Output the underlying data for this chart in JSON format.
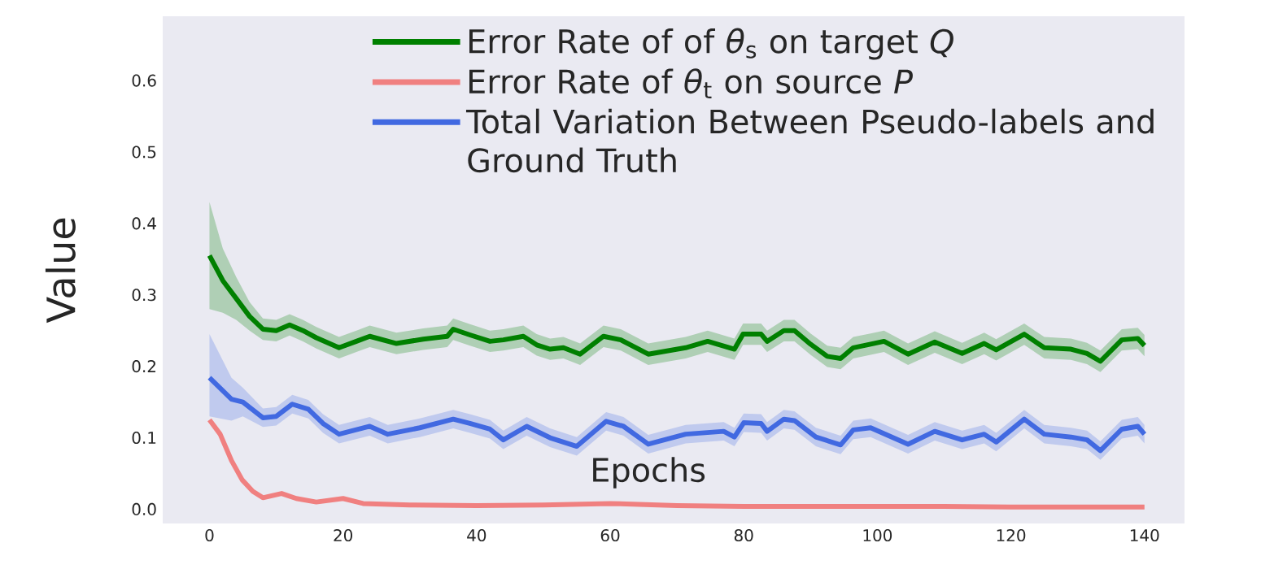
{
  "chart_data": {
    "type": "line",
    "xlabel": "Epochs",
    "ylabel": "Value",
    "xlim": [
      -7,
      146
    ],
    "ylim": [
      -0.02,
      0.69
    ],
    "xticks": [
      0,
      20,
      40,
      60,
      80,
      100,
      120,
      140
    ],
    "yticks": [
      {
        "value": 0,
        "label": "0.0"
      },
      0.1,
      0.2,
      0.3,
      0.4,
      0.5,
      0.6
    ],
    "grid": false,
    "legend": "top right",
    "series": [
      {
        "name": "Error Rate of of *θ*$_{s}$ on target *Q*",
        "color": "#008000",
        "x": [
          0,
          2,
          4,
          6,
          8,
          10,
          12,
          14,
          16,
          19.4,
          22,
          24,
          28,
          32,
          35.6,
          36.5,
          39,
          42,
          44,
          47,
          49,
          51,
          53,
          55.5,
          59,
          61.6,
          65.7,
          71.3,
          74.6,
          78.6,
          79.9,
          82.6,
          83.5,
          86,
          87.6,
          90,
          92.5,
          94.5,
          96.4,
          99,
          101,
          104.6,
          108.6,
          112.7,
          116,
          117.8,
          122,
          125,
          129,
          131.4,
          133.4,
          136.6,
          139,
          140
        ],
        "values": [
          0.355,
          0.32,
          0.295,
          0.27,
          0.252,
          0.25,
          0.258,
          0.25,
          0.24,
          0.226,
          0.235,
          0.242,
          0.232,
          0.238,
          0.242,
          0.252,
          0.244,
          0.235,
          0.237,
          0.242,
          0.23,
          0.224,
          0.226,
          0.217,
          0.242,
          0.237,
          0.217,
          0.226,
          0.235,
          0.224,
          0.245,
          0.245,
          0.235,
          0.25,
          0.25,
          0.231,
          0.214,
          0.211,
          0.226,
          0.231,
          0.235,
          0.217,
          0.234,
          0.218,
          0.232,
          0.223,
          0.245,
          0.226,
          0.224,
          0.218,
          0.207,
          0.237,
          0.239,
          0.229
        ],
        "upper": [
          0.43,
          0.365,
          0.325,
          0.29,
          0.267,
          0.265,
          0.273,
          0.265,
          0.255,
          0.241,
          0.25,
          0.257,
          0.247,
          0.253,
          0.257,
          0.267,
          0.259,
          0.25,
          0.252,
          0.257,
          0.245,
          0.239,
          0.241,
          0.232,
          0.257,
          0.252,
          0.232,
          0.241,
          0.25,
          0.239,
          0.26,
          0.26,
          0.25,
          0.265,
          0.265,
          0.246,
          0.229,
          0.226,
          0.241,
          0.246,
          0.25,
          0.232,
          0.249,
          0.233,
          0.247,
          0.238,
          0.26,
          0.241,
          0.239,
          0.233,
          0.222,
          0.252,
          0.254,
          0.244
        ],
        "lower": [
          0.28,
          0.275,
          0.265,
          0.25,
          0.237,
          0.235,
          0.243,
          0.235,
          0.225,
          0.211,
          0.22,
          0.227,
          0.217,
          0.223,
          0.227,
          0.237,
          0.229,
          0.22,
          0.222,
          0.227,
          0.215,
          0.209,
          0.211,
          0.202,
          0.227,
          0.222,
          0.202,
          0.211,
          0.22,
          0.209,
          0.23,
          0.23,
          0.22,
          0.235,
          0.235,
          0.216,
          0.199,
          0.196,
          0.211,
          0.216,
          0.22,
          0.202,
          0.219,
          0.203,
          0.217,
          0.208,
          0.23,
          0.211,
          0.209,
          0.203,
          0.192,
          0.222,
          0.224,
          0.214
        ]
      },
      {
        "name": "Error Rate of *θ*$_{t}$ on source *P*",
        "color": "#f08080",
        "x": [
          0,
          1.6,
          3.3,
          4.9,
          6.5,
          8,
          10.8,
          13,
          16,
          20,
          23,
          30,
          40,
          50,
          60,
          70,
          80,
          90,
          100,
          110,
          120,
          130,
          140
        ],
        "values": [
          0.125,
          0.105,
          0.068,
          0.041,
          0.025,
          0.016,
          0.022,
          0.015,
          0.01,
          0.015,
          0.008,
          0.006,
          0.005,
          0.006,
          0.008,
          0.005,
          0.004,
          0.004,
          0.004,
          0.004,
          0.003,
          0.003,
          0.003
        ]
      },
      {
        "name": "Total Variation Between Pseudo-labels and Ground Truth",
        "color": "#4169e1",
        "x": [
          0,
          3.3,
          5,
          8,
          10,
          12.4,
          14.8,
          17,
          19.4,
          24,
          26.7,
          31.5,
          36.5,
          39,
          42,
          44,
          47.5,
          51,
          55,
          59.4,
          62,
          65.7,
          71.3,
          77,
          78.6,
          80,
          82.6,
          83.5,
          86,
          87.6,
          90.8,
          94.5,
          96.4,
          99,
          104.6,
          108.6,
          112.7,
          116,
          117.8,
          122,
          125,
          129,
          131.4,
          133.4,
          136.6,
          139,
          140
        ],
        "values": [
          0.184,
          0.154,
          0.15,
          0.128,
          0.13,
          0.147,
          0.14,
          0.12,
          0.105,
          0.116,
          0.105,
          0.114,
          0.126,
          0.12,
          0.112,
          0.097,
          0.116,
          0.1,
          0.088,
          0.123,
          0.116,
          0.091,
          0.105,
          0.109,
          0.101,
          0.121,
          0.12,
          0.109,
          0.126,
          0.124,
          0.101,
          0.09,
          0.111,
          0.114,
          0.091,
          0.109,
          0.097,
          0.105,
          0.094,
          0.126,
          0.105,
          0.101,
          0.097,
          0.082,
          0.112,
          0.116,
          0.105
        ],
        "upper": [
          0.245,
          0.184,
          0.17,
          0.141,
          0.143,
          0.16,
          0.153,
          0.133,
          0.118,
          0.129,
          0.118,
          0.127,
          0.139,
          0.133,
          0.125,
          0.11,
          0.129,
          0.113,
          0.101,
          0.136,
          0.129,
          0.104,
          0.118,
          0.122,
          0.114,
          0.134,
          0.133,
          0.122,
          0.139,
          0.137,
          0.114,
          0.103,
          0.124,
          0.127,
          0.104,
          0.122,
          0.11,
          0.118,
          0.107,
          0.139,
          0.118,
          0.114,
          0.11,
          0.095,
          0.125,
          0.129,
          0.118
        ],
        "lower": [
          0.13,
          0.124,
          0.13,
          0.115,
          0.117,
          0.134,
          0.127,
          0.107,
          0.092,
          0.103,
          0.092,
          0.101,
          0.113,
          0.107,
          0.099,
          0.084,
          0.103,
          0.087,
          0.075,
          0.11,
          0.103,
          0.078,
          0.092,
          0.096,
          0.088,
          0.108,
          0.107,
          0.096,
          0.113,
          0.111,
          0.088,
          0.077,
          0.098,
          0.101,
          0.078,
          0.096,
          0.084,
          0.092,
          0.081,
          0.113,
          0.092,
          0.088,
          0.084,
          0.069,
          0.099,
          0.103,
          0.092
        ]
      }
    ]
  }
}
